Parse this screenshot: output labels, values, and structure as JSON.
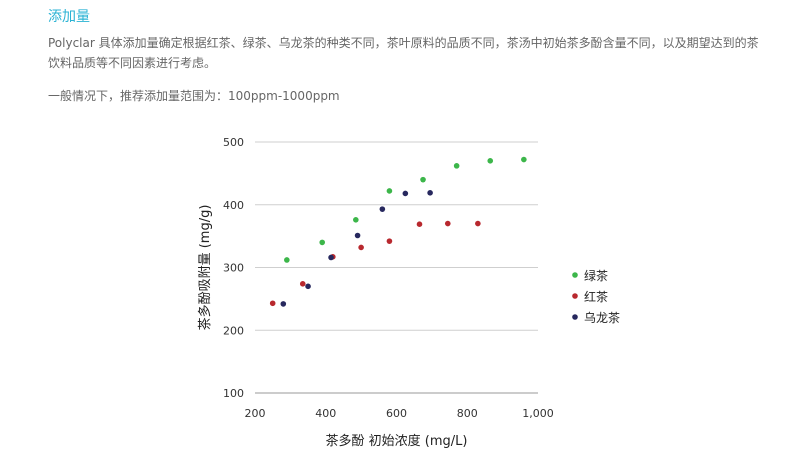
{
  "section": {
    "title": "添加量",
    "paragraph1": "Polyclar 具体添加量确定根据红茶、绿茶、乌龙茶的种类不同，茶叶原料的品质不同，茶汤中初始茶多酚含量不同，以及期望达到的茶饮料品质等不同因素进行考虑。",
    "paragraph2": "一般情况下，推荐添加量范围为：100ppm-1000ppm"
  },
  "colors": {
    "accent": "#2bb3d4",
    "green": "#3cb64a",
    "red": "#b8282e",
    "navy": "#27285e"
  },
  "chart_data": {
    "type": "scatter",
    "xlabel": "茶多酚 初始浓度 (mg/L)",
    "ylabel": "茶多酚吸附量 (mg/g)",
    "xlim": [
      200,
      1000
    ],
    "ylim": [
      100,
      500
    ],
    "xticks": [
      200,
      400,
      600,
      800,
      1000
    ],
    "xtick_labels": [
      "200",
      "400",
      "600",
      "800",
      "1,000"
    ],
    "yticks": [
      100,
      200,
      300,
      400,
      500
    ],
    "grid": "horizontal",
    "legend_position": "right",
    "series": [
      {
        "name": "绿茶",
        "color": "#3cb64a",
        "points": [
          [
            290,
            312
          ],
          [
            390,
            340
          ],
          [
            485,
            376
          ],
          [
            580,
            422
          ],
          [
            675,
            440
          ],
          [
            770,
            462
          ],
          [
            865,
            470
          ],
          [
            960,
            472
          ]
        ]
      },
      {
        "name": "红茶",
        "color": "#b8282e",
        "points": [
          [
            250,
            243
          ],
          [
            335,
            274
          ],
          [
            420,
            317
          ],
          [
            500,
            332
          ],
          [
            580,
            342
          ],
          [
            665,
            369
          ],
          [
            745,
            370
          ],
          [
            830,
            370
          ]
        ]
      },
      {
        "name": "乌龙茶",
        "color": "#27285e",
        "points": [
          [
            280,
            242
          ],
          [
            350,
            270
          ],
          [
            415,
            316
          ],
          [
            490,
            351
          ],
          [
            560,
            393
          ],
          [
            625,
            418
          ],
          [
            695,
            419
          ]
        ]
      }
    ]
  }
}
